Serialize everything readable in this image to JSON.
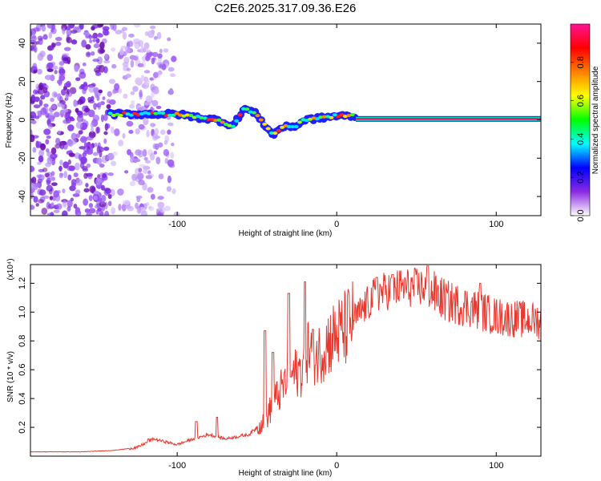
{
  "title": "C2E6.2025.317.09.36.E26",
  "chart_data": [
    {
      "type": "heatmap",
      "name": "spectrogram",
      "xlabel": "Height of straight line (km)",
      "ylabel": "Frequency (Hz)",
      "xlim": [
        -192,
        128
      ],
      "ylim": [
        -50,
        50
      ],
      "xticks": [
        -100,
        0,
        100
      ],
      "yticks": [
        -40,
        -20,
        0,
        20,
        40
      ],
      "colorbar": {
        "label": "Normalized spectral amplitude",
        "range": [
          0,
          1
        ],
        "ticks": [
          "0.0",
          "0.2",
          "0.4",
          "0.6",
          "0.8"
        ],
        "tick_values": [
          0,
          0.2,
          0.4,
          0.6,
          0.8
        ],
        "colors": [
          "#ffffff",
          "#8a2be2",
          "#0000ff",
          "#00ffff",
          "#00ff00",
          "#ffff00",
          "#ff8000",
          "#ff0000",
          "#ff1493"
        ]
      },
      "features": {
        "noise_region_km": [
          -192,
          -100
        ],
        "signal_start_km": -142,
        "steady_line_start_km": 12,
        "steady_line_freq_hz": 0.5,
        "ridge": [
          [
            -142,
            3
          ],
          [
            -120,
            3
          ],
          [
            -100,
            3
          ],
          [
            -85,
            1
          ],
          [
            -75,
            0
          ],
          [
            -65,
            -3
          ],
          [
            -58,
            6
          ],
          [
            -50,
            3
          ],
          [
            -45,
            -3
          ],
          [
            -40,
            -8
          ],
          [
            -35,
            -4
          ],
          [
            -25,
            -3
          ],
          [
            -20,
            0
          ],
          [
            -10,
            1
          ],
          [
            0,
            2
          ],
          [
            10,
            2
          ],
          [
            12,
            0.5
          ],
          [
            128,
            0.5
          ]
        ]
      }
    },
    {
      "type": "line",
      "name": "snr",
      "xlabel": "Height of straight line (km)",
      "ylabel": "SNR (10 * v/v)",
      "y_multiplier": "(x10⁴)",
      "xlim": [
        -192,
        128
      ],
      "ylim": [
        0,
        1.33
      ],
      "xticks": [
        -100,
        0,
        100
      ],
      "yticks": [
        0.2,
        0.4,
        0.6,
        0.8,
        1.0,
        1.2
      ],
      "ytick_labels": [
        "0.2",
        "0.4",
        "0.6",
        "0.8",
        "1.0",
        "1.2"
      ],
      "color": "#e8392e",
      "envelope": [
        {
          "x": -192,
          "y": 0.03
        },
        {
          "x": -160,
          "y": 0.03
        },
        {
          "x": -140,
          "y": 0.04
        },
        {
          "x": -125,
          "y": 0.06
        },
        {
          "x": -115,
          "y": 0.12
        },
        {
          "x": -100,
          "y": 0.08
        },
        {
          "x": -90,
          "y": 0.12
        },
        {
          "x": -80,
          "y": 0.15
        },
        {
          "x": -70,
          "y": 0.12
        },
        {
          "x": -55,
          "y": 0.15
        },
        {
          "x": -45,
          "y": 0.25
        },
        {
          "x": -38,
          "y": 0.4
        },
        {
          "x": -30,
          "y": 0.55
        },
        {
          "x": -22,
          "y": 0.6
        },
        {
          "x": -18,
          "y": 0.75
        },
        {
          "x": -12,
          "y": 0.7
        },
        {
          "x": -5,
          "y": 0.8
        },
        {
          "x": 5,
          "y": 0.88
        },
        {
          "x": 15,
          "y": 1.0
        },
        {
          "x": 25,
          "y": 1.13
        },
        {
          "x": 40,
          "y": 1.17
        },
        {
          "x": 55,
          "y": 1.17
        },
        {
          "x": 70,
          "y": 1.07
        },
        {
          "x": 85,
          "y": 1.03
        },
        {
          "x": 100,
          "y": 0.97
        },
        {
          "x": 115,
          "y": 0.95
        },
        {
          "x": 128,
          "y": 0.94
        }
      ],
      "spikes": [
        {
          "x": -118,
          "y": 0.12
        },
        {
          "x": -88,
          "y": 0.24
        },
        {
          "x": -75,
          "y": 0.27
        },
        {
          "x": -45,
          "y": 0.87
        },
        {
          "x": -40,
          "y": 0.72
        },
        {
          "x": -30,
          "y": 1.13
        },
        {
          "x": -20,
          "y": 1.21
        },
        {
          "x": -15,
          "y": 0.88
        },
        {
          "x": 25,
          "y": 1.24
        },
        {
          "x": 35,
          "y": 1.26
        },
        {
          "x": 57,
          "y": 1.32
        },
        {
          "x": 90,
          "y": 1.2
        }
      ]
    }
  ]
}
